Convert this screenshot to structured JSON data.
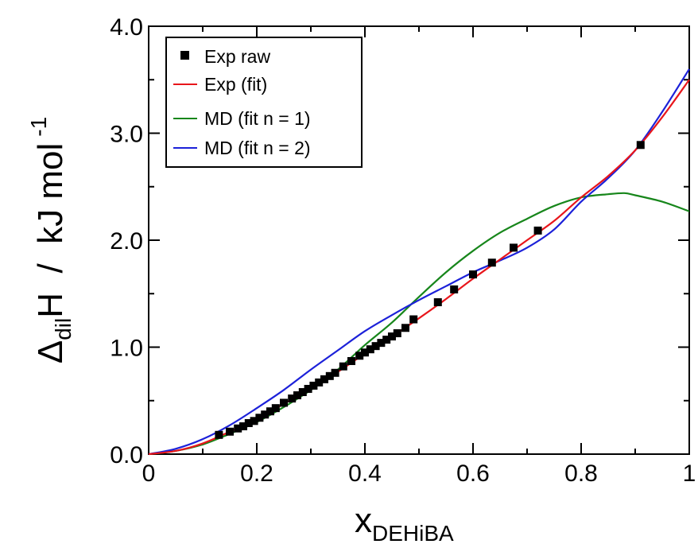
{
  "chart_data": {
    "type": "scatter",
    "xlabel": {
      "main": "x",
      "sub": "DEHiBA"
    },
    "ylabel": {
      "delta": "Δ",
      "sub": "dil",
      "main": "H  /  kJ mol",
      "sup": "-1"
    },
    "xlim": [
      0,
      1
    ],
    "ylim": [
      0,
      4.0
    ],
    "x_ticks": [
      0,
      0.2,
      0.4,
      0.6,
      0.8,
      1
    ],
    "x_tick_labels": [
      "0",
      "0.2",
      "0.4",
      "0.6",
      "0.8",
      "1"
    ],
    "y_ticks": [
      0,
      1,
      2,
      3,
      4
    ],
    "y_tick_labels": [
      "0.0",
      "1.0",
      "2.0",
      "3.0",
      "4.0"
    ],
    "grid": false,
    "legend_position": "top-left",
    "colors": {
      "exp_raw": "#000000",
      "exp_fit": "#e8151b",
      "md_n1": "#17861b",
      "md_n2": "#1c21d9"
    },
    "series": [
      {
        "name": "Exp raw",
        "kind": "markers",
        "x": [
          0.13,
          0.15,
          0.165,
          0.175,
          0.185,
          0.195,
          0.205,
          0.215,
          0.225,
          0.235,
          0.25,
          0.265,
          0.275,
          0.285,
          0.295,
          0.305,
          0.315,
          0.325,
          0.335,
          0.345,
          0.36,
          0.375,
          0.39,
          0.4,
          0.41,
          0.42,
          0.43,
          0.44,
          0.45,
          0.46,
          0.475,
          0.49,
          0.535,
          0.565,
          0.6,
          0.635,
          0.675,
          0.72,
          0.91
        ],
        "y": [
          0.18,
          0.21,
          0.24,
          0.26,
          0.29,
          0.31,
          0.34,
          0.37,
          0.4,
          0.43,
          0.48,
          0.52,
          0.55,
          0.58,
          0.61,
          0.64,
          0.67,
          0.7,
          0.73,
          0.76,
          0.82,
          0.87,
          0.92,
          0.95,
          0.98,
          1.01,
          1.04,
          1.07,
          1.1,
          1.13,
          1.18,
          1.26,
          1.42,
          1.54,
          1.68,
          1.79,
          1.93,
          2.09,
          2.89
        ]
      },
      {
        "name": "Exp (fit)",
        "kind": "line",
        "x": [
          0,
          0.05,
          0.1,
          0.15,
          0.2,
          0.25,
          0.3,
          0.35,
          0.4,
          0.45,
          0.5,
          0.55,
          0.6,
          0.65,
          0.7,
          0.75,
          0.8,
          0.85,
          0.9,
          0.95,
          1.0
        ],
        "y": [
          0,
          0.03,
          0.1,
          0.21,
          0.33,
          0.47,
          0.62,
          0.77,
          0.94,
          1.1,
          1.27,
          1.45,
          1.64,
          1.82,
          2.0,
          2.18,
          2.4,
          2.6,
          2.84,
          3.15,
          3.5
        ]
      },
      {
        "name": "MD (fit n = 1)",
        "kind": "line",
        "x": [
          0,
          0.05,
          0.1,
          0.15,
          0.2,
          0.25,
          0.3,
          0.35,
          0.4,
          0.45,
          0.5,
          0.55,
          0.6,
          0.65,
          0.7,
          0.75,
          0.8,
          0.85,
          0.88,
          0.9,
          0.95,
          1.0
        ],
        "y": [
          0,
          0.03,
          0.09,
          0.19,
          0.3,
          0.44,
          0.6,
          0.79,
          1.02,
          1.23,
          1.47,
          1.7,
          1.9,
          2.07,
          2.2,
          2.32,
          2.4,
          2.43,
          2.44,
          2.42,
          2.36,
          2.27
        ]
      },
      {
        "name": "MD (fit n = 2)",
        "kind": "line",
        "x": [
          0,
          0.05,
          0.1,
          0.15,
          0.2,
          0.25,
          0.3,
          0.35,
          0.4,
          0.45,
          0.5,
          0.55,
          0.6,
          0.65,
          0.7,
          0.75,
          0.8,
          0.85,
          0.9,
          0.95,
          1.0
        ],
        "y": [
          0,
          0.05,
          0.14,
          0.27,
          0.43,
          0.6,
          0.79,
          0.97,
          1.15,
          1.3,
          1.44,
          1.57,
          1.7,
          1.81,
          1.93,
          2.1,
          2.36,
          2.58,
          2.84,
          3.2,
          3.6
        ]
      }
    ]
  }
}
